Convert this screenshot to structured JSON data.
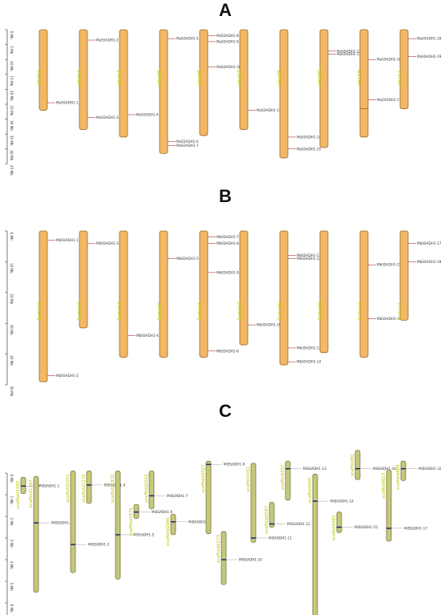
{
  "colors": {
    "chrom_fill": "#f2b865",
    "chrom_stroke": "#9a6a2a",
    "chrom_fill_c": "#c5c77a",
    "chrom_stroke_c": "#6b6a3a",
    "gene_line": "#b03030",
    "label_color": "#c8d400",
    "band_color": "#1a1a6e"
  },
  "panelA": {
    "title": "A",
    "axis_ticks": [
      "0 Mb",
      "5 Mb",
      "10 Mb",
      "15 Mb",
      "20 Mb",
      "25 Mb",
      "30 Mb",
      "35 Mb",
      "40 Mb",
      "45 Mb"
    ],
    "chromosomes": [
      {
        "name": "chr01",
        "len": 27,
        "genes": [
          {
            "name": "MaSSADH1-1",
            "pos": 24.5
          }
        ]
      },
      {
        "name": "chr03",
        "len": 33.5,
        "genes": [
          {
            "name": "MaSSADH1-2",
            "pos": 3.5
          },
          {
            "name": "MaSSADH1-3",
            "pos": 29.5
          }
        ]
      },
      {
        "name": "chr04",
        "len": 36,
        "genes": [
          {
            "name": "MaSSADH1-4",
            "pos": 28.5
          }
        ]
      },
      {
        "name": "chr05",
        "len": 41.5,
        "genes": [
          {
            "name": "MaSSADH1-5",
            "pos": 3
          },
          {
            "name": "MaSSADH1-6",
            "pos": 37.5
          },
          {
            "name": "MaSSADH1-7",
            "pos": 38.8
          }
        ]
      },
      {
        "name": "chr06",
        "len": 35.5,
        "genes": [
          {
            "name": "MaSSADH1-8",
            "pos": 2
          },
          {
            "name": "MaSSADH1-9",
            "pos": 4
          },
          {
            "name": "MaSSADH1-10",
            "pos": 12.5
          }
        ]
      },
      {
        "name": "chr07",
        "len": 33.5,
        "genes": [
          {
            "name": "MaSSADH1-11",
            "pos": 27
          }
        ]
      },
      {
        "name": "chr08",
        "len": 43,
        "genes": [
          {
            "name": "MaSSADH1-14",
            "pos": 36
          },
          {
            "name": "MaSSADH1-15",
            "pos": 40
          }
        ]
      },
      {
        "name": "chr09",
        "len": 39.5,
        "genes": [
          {
            "name": "MaSSADH1-12",
            "pos": 7.2
          },
          {
            "name": "MaSSADH1-13",
            "pos": 8.2
          }
        ]
      },
      {
        "name": "chr10",
        "len": 36,
        "genes": [
          {
            "name": "MaSSADH1-16",
            "pos": 10
          }
        ]
      },
      {
        "name": "chr11",
        "len": 26.5,
        "genes": [
          {
            "name": "MaSSADH1-17",
            "pos": 23.5
          }
        ]
      },
      {
        "name": "chr11",
        "len": 26.5,
        "genes": [
          {
            "name": "MaSSADH1-18",
            "pos": 3
          },
          {
            "name": "MaSSADH1-19",
            "pos": 9
          }
        ]
      }
    ]
  },
  "panelB": {
    "title": "B",
    "axis_ticks": [
      "0 Mb",
      "10 Mb",
      "20 Mb",
      "30 Mb",
      "40 Mb",
      "50 Mb"
    ],
    "chromosomes": [
      {
        "name": "Bchr01",
        "len": 49,
        "genes": [
          {
            "name": "MbSSADH1-1",
            "pos": 3
          },
          {
            "name": "MbSSADH1-2",
            "pos": 47
          }
        ]
      },
      {
        "name": "Bchr03",
        "len": 31.5,
        "genes": [
          {
            "name": "MbSSADH1-3",
            "pos": 4
          }
        ]
      },
      {
        "name": "Bchr04",
        "len": 41,
        "genes": [
          {
            "name": "MbSSADH1-4",
            "pos": 34
          }
        ]
      },
      {
        "name": "Bchr05",
        "len": 41,
        "genes": [
          {
            "name": "MbSSADH1-5",
            "pos": 9
          }
        ]
      },
      {
        "name": "Bchr06",
        "len": 41,
        "genes": [
          {
            "name": "MbSSADH1-7",
            "pos": 2
          },
          {
            "name": "MbSSADH1-8",
            "pos": 4
          },
          {
            "name": "MbSSADH1-9",
            "pos": 13.5
          },
          {
            "name": "MbSSADH1-6",
            "pos": 39
          }
        ]
      },
      {
        "name": "Bchr07",
        "len": 37,
        "genes": [
          {
            "name": "MbSSADH1-10",
            "pos": 30.5
          }
        ]
      },
      {
        "name": "Bchr08",
        "len": 43.5,
        "genes": [
          {
            "name": "MbSSADH1-11",
            "pos": 8
          },
          {
            "name": "MbSSADH1-12",
            "pos": 9
          },
          {
            "name": "MbSSADH1-13",
            "pos": 38
          },
          {
            "name": "MbSSADH1-14",
            "pos": 42.5
          }
        ]
      },
      {
        "name": "Bchr09",
        "len": 39.5,
        "genes": []
      },
      {
        "name": "Bchr10",
        "len": 41,
        "genes": [
          {
            "name": "MbSSADH1-15",
            "pos": 11
          },
          {
            "name": "MbSSADH1-16",
            "pos": 28.5
          }
        ]
      },
      {
        "name": "Bchr11",
        "len": 29,
        "genes": [
          {
            "name": "MbSSADH1-17",
            "pos": 4
          },
          {
            "name": "MbSSADH1-18",
            "pos": 10
          }
        ]
      }
    ]
  },
  "panelC": {
    "title": "C",
    "axis_ticks": [
      "0 Mb",
      "1 Mb",
      "2 Mb",
      "3 Mb",
      "4 Mb",
      "5 Mb",
      "6 Mb",
      "7 Mb"
    ],
    "scaffolds": [
      {
        "name": "scaffold1082",
        "start": 0.2,
        "len": 0.75,
        "genes": [
          {
            "name": "MiSSADH1-1",
            "pos": 0.6
          }
        ]
      },
      {
        "name": "scaffold1167",
        "start": 0.15,
        "len": 5.35,
        "genes": [
          {
            "name": "MiSSADH1-2",
            "pos": 2.3
          }
        ]
      },
      {
        "name": "scaffold1261",
        "start": -0.1,
        "len": 4.7,
        "genes": [
          {
            "name": "MiSSADH1-3",
            "pos": 3.3
          }
        ]
      },
      {
        "name": "scaffold1172",
        "start": -0.1,
        "len": 1.5,
        "genes": [
          {
            "name": "MiSSADH1-4",
            "pos": 0.55
          }
        ]
      },
      {
        "name": "scaffold1832",
        "start": -0.1,
        "len": 5.0,
        "genes": [
          {
            "name": "MiSSADH1-5",
            "pos": 2.85
          }
        ]
      },
      {
        "name": "scaffold1874",
        "start": 1.45,
        "len": 0.65,
        "genes": [
          {
            "name": "MiSSADH1-6",
            "pos": 1.8
          }
        ]
      },
      {
        "name": "scaffold2022",
        "start": -0.1,
        "len": 1.75,
        "genes": [
          {
            "name": "MiSSADH1-7",
            "pos": 1.05
          }
        ]
      },
      {
        "name": "scaffold2040",
        "start": 1.9,
        "len": 0.95,
        "genes": [
          {
            "name": "MiSSADH1-8",
            "pos": 2.25
          }
        ]
      },
      {
        "name": "scaffold2027",
        "start": -0.55,
        "len": 3.35,
        "genes": [
          {
            "name": "MiSSADH1-9",
            "pos": -0.4
          }
        ]
      },
      {
        "name": "scaffold2273",
        "start": 2.7,
        "len": 2.45,
        "genes": [
          {
            "name": "MiSSADH1-10",
            "pos": 4.0
          }
        ]
      },
      {
        "name": "scaffold391",
        "start": -0.45,
        "len": 3.65,
        "genes": [
          {
            "name": "MiSSADH1-11",
            "pos": 3.0
          }
        ]
      },
      {
        "name": "scaffold397",
        "start": -0.55,
        "len": 1.8,
        "genes": [
          {
            "name": "MiSSADH1-13",
            "pos": -0.2
          }
        ]
      },
      {
        "name": "scaffold2587",
        "start": 1.35,
        "len": 1.15,
        "genes": [
          {
            "name": "MiSSADH1-12",
            "pos": 2.35
          }
        ]
      },
      {
        "name": "scaffold406",
        "start": 0.05,
        "len": 7.3,
        "genes": [
          {
            "name": "MiSSADH1-14",
            "pos": 1.3
          }
        ]
      },
      {
        "name": "scaffold483",
        "start": 1.8,
        "len": 0.95,
        "genes": [
          {
            "name": "MiSSADH1-15",
            "pos": 2.5
          }
        ]
      },
      {
        "name": "scaffold81",
        "start": -1.05,
        "len": 1.35,
        "genes": [
          {
            "name": "MiSSADH1-16",
            "pos": -0.2
          }
        ]
      },
      {
        "name": "scaffold823",
        "start": -0.15,
        "len": 3.3,
        "genes": [
          {
            "name": "MiSSADH1-17",
            "pos": 2.55
          }
        ]
      },
      {
        "name": "scaffold884",
        "start": -0.55,
        "len": 0.9,
        "genes": [
          {
            "name": "MiSSADH1-18",
            "pos": -0.2
          }
        ]
      }
    ]
  }
}
